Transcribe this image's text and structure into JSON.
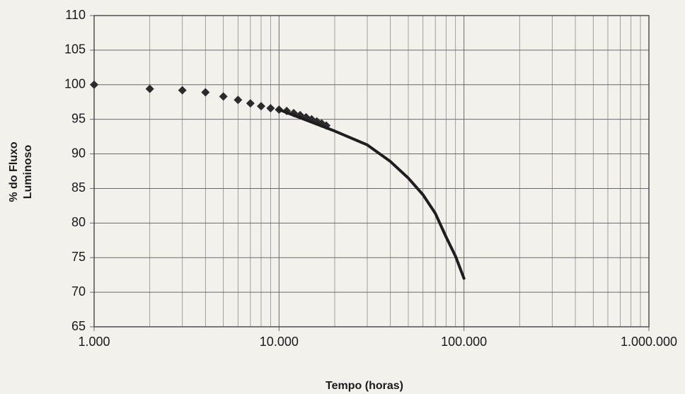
{
  "chart_data": {
    "type": "line",
    "xlabel": "Tempo (horas)",
    "ylabel": [
      "% do Fluxo",
      "Luminoso"
    ],
    "xscale": "log",
    "grid": true,
    "xlim": [
      1000,
      1000000
    ],
    "ylim": [
      65,
      110
    ],
    "xticks": [
      {
        "value": 1000,
        "label": "1.000"
      },
      {
        "value": 10000,
        "label": "10.000"
      },
      {
        "value": 100000,
        "label": "100.000"
      },
      {
        "value": 1000000,
        "label": "1.000.000"
      }
    ],
    "yticks": [
      65,
      70,
      75,
      80,
      85,
      90,
      95,
      100,
      105,
      110
    ],
    "series": [
      {
        "style": "markers",
        "color": "#2b2b2b",
        "x": [
          1000,
          2000,
          3000,
          4000,
          5000,
          6000,
          7000,
          8000,
          9000,
          10000,
          11000,
          12000,
          13000,
          14000,
          15000,
          16000,
          17000,
          18000
        ],
        "values": [
          100,
          99.4,
          99.2,
          98.9,
          98.3,
          97.8,
          97.3,
          96.9,
          96.6,
          96.4,
          96.2,
          95.9,
          95.6,
          95.3,
          95.0,
          94.7,
          94.4,
          94.1
        ]
      },
      {
        "style": "line",
        "color": "#1e1e1e",
        "x": [
          10000,
          20000,
          30000,
          40000,
          50000,
          60000,
          70000,
          80000,
          90000,
          100000
        ],
        "values": [
          96.4,
          93.3,
          91.3,
          88.9,
          86.5,
          84.1,
          81.4,
          78,
          75.2,
          72
        ]
      }
    ]
  }
}
